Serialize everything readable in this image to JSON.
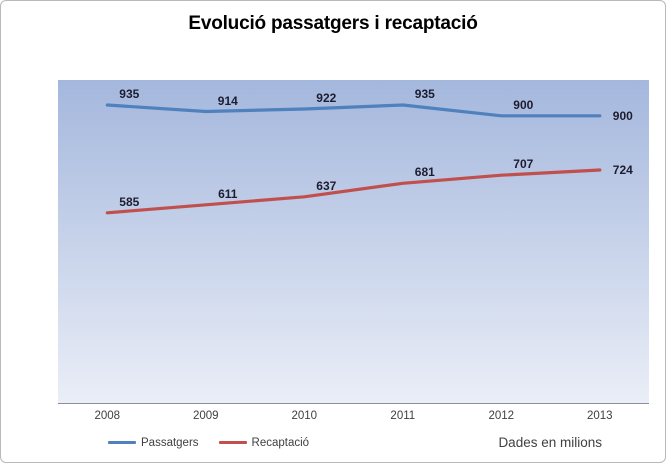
{
  "chart": {
    "title": "Evolució passatgers i recaptació",
    "footnote": "Dades en milions"
  },
  "chart_data": {
    "type": "line",
    "title": "Evolució passatgers i recaptació",
    "categories": [
      "2008",
      "2009",
      "2010",
      "2011",
      "2012",
      "2013"
    ],
    "series": [
      {
        "name": "Passatgers",
        "color": "#4f81bd",
        "values": [
          935,
          914,
          922,
          935,
          900,
          900
        ]
      },
      {
        "name": "Recaptació",
        "color": "#c0504d",
        "values": [
          585,
          611,
          637,
          681,
          707,
          724
        ]
      }
    ],
    "xlabel": "",
    "ylabel": "",
    "ylim": [
      0,
      1000
    ],
    "grid": false,
    "legend_position": "bottom",
    "data_labels": true,
    "annotations": [
      "Dades en milions"
    ]
  },
  "colors": {
    "frame_border": "#b9b9b9",
    "axis_line": "#8e8e99",
    "axis_text": "#404040",
    "data_label": "#1d1d30",
    "plot_gradient_top": "#a4b7dd",
    "plot_gradient_bottom": "#eaeef7",
    "series_passatgers": "#4f81bd",
    "series_recaptacio": "#c0504d"
  }
}
